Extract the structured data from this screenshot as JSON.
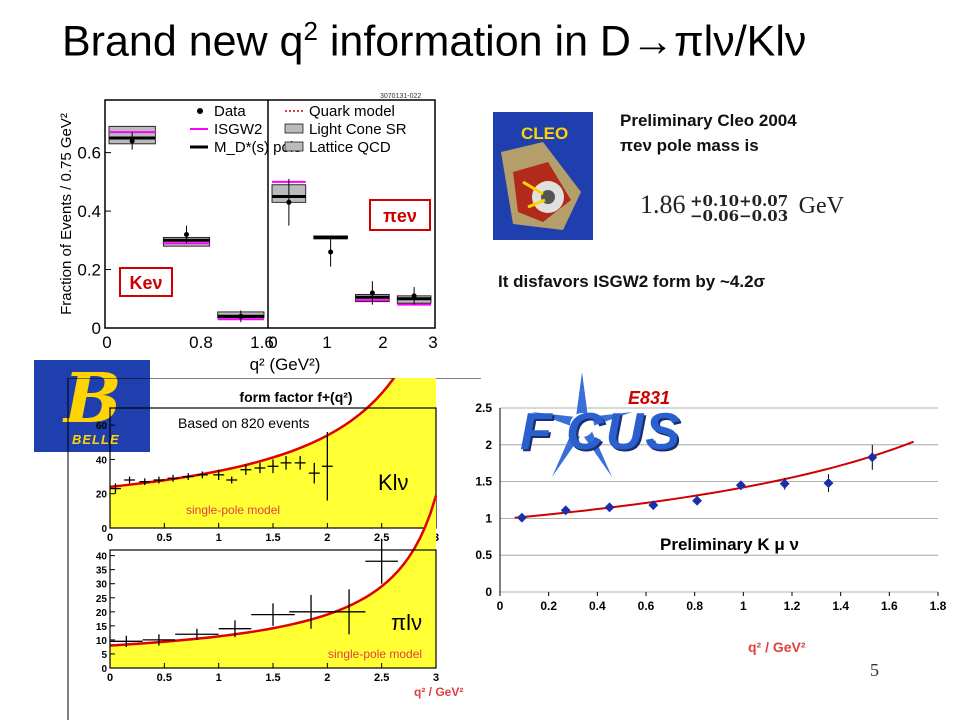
{
  "slide": {
    "title_pre": "Brand new q",
    "title_sup": "2",
    "title_post": " information in D→πlν/Klν",
    "page_number": "5"
  },
  "cleo": {
    "logo_text": "CLEO",
    "line1": "Preliminary Cleo 2004",
    "line2": "πeν pole mass is",
    "pole_mass": "1.86",
    "err_up": "+0.10+0.07",
    "err_dn": "−0.06−0.03",
    "unit": "GeV",
    "disfavor": "It disfavors ISGW2 form by ~4.2σ"
  },
  "belle": {
    "logo_text": "BELLE"
  },
  "focus": {
    "logo_text": "F CUS",
    "tag": "E831"
  },
  "chart_data": [
    {
      "type": "bar",
      "id": "cleo-q2",
      "tag": "3070131-022",
      "ylabel": "Fraction of Events / 0.75 GeV²",
      "xlabel": "q² (GeV²)",
      "x_ticks_left": [
        "0",
        "0.8",
        "1.6"
      ],
      "x_ticks_right": [
        "0",
        "1",
        "2",
        "3"
      ],
      "y_ticks": [
        "0",
        "0.2",
        "0.4",
        "0.6"
      ],
      "ylim": [
        0,
        0.78
      ],
      "legend": [
        "Data",
        "ISGW2",
        "M_D*(s) pole",
        "Quark model",
        "Light Cone SR",
        "Lattice QCD"
      ],
      "label_ke": "Keν",
      "label_pie": "πeν",
      "panels": [
        {
          "name": "Keν",
          "bins": [
            {
              "data": 0.64,
              "err": 0.03,
              "isgw2": 0.67,
              "pole": 0.65,
              "box": [
                0.63,
                0.69
              ]
            },
            {
              "data": 0.32,
              "err": 0.03,
              "isgw2": 0.29,
              "pole": 0.3,
              "box": [
                0.28,
                0.31
              ]
            },
            {
              "data": 0.04,
              "err": 0.02,
              "isgw2": 0.03,
              "pole": 0.04,
              "box": [
                0.035,
                0.055
              ]
            }
          ]
        },
        {
          "name": "πeν",
          "bins": [
            {
              "data": 0.43,
              "err": 0.08,
              "isgw2": 0.5,
              "pole": 0.45,
              "box": [
                0.43,
                0.49
              ]
            },
            {
              "data": 0.26,
              "err": 0.05,
              "isgw2": 0.31,
              "pole": 0.31,
              "box": [
                0.305,
                0.315
              ]
            },
            {
              "data": 0.12,
              "err": 0.04,
              "isgw2": 0.095,
              "pole": 0.105,
              "box": [
                0.09,
                0.115
              ]
            },
            {
              "data": 0.11,
              "err": 0.03,
              "isgw2": 0.08,
              "pole": 0.1,
              "box": [
                0.085,
                0.11
              ]
            }
          ]
        }
      ]
    },
    {
      "type": "scatter",
      "id": "belle-kln",
      "title": "form factor f+(q²)",
      "annotation": "Based on 820 events",
      "model_label": "single-pole model",
      "channel": "Klν",
      "x_ticks": [
        "0",
        "0.5",
        "1",
        "1.5",
        "2",
        "2.5",
        "3"
      ],
      "y_ticks": [
        "0",
        "20",
        "40",
        "60"
      ],
      "xlim": [
        0,
        3
      ],
      "ylim": [
        0,
        70
      ],
      "x": [
        0.05,
        0.18,
        0.32,
        0.45,
        0.58,
        0.72,
        0.85,
        1.0,
        1.12,
        1.25,
        1.38,
        1.5,
        1.62,
        1.75,
        1.88,
        2.0
      ],
      "y": [
        23,
        28,
        27,
        28,
        29,
        30,
        31,
        31,
        28,
        34,
        35,
        36,
        38,
        38,
        32,
        36
      ],
      "y_err": [
        3,
        2,
        2,
        2,
        2,
        2,
        2,
        3,
        2,
        3,
        3,
        4,
        4,
        4,
        6,
        20
      ]
    },
    {
      "type": "scatter",
      "id": "belle-piln",
      "model_label": "single-pole model",
      "channel": "πlν",
      "xlabel": "q² / GeV²",
      "x_ticks": [
        "0",
        "0.5",
        "1",
        "1.5",
        "2",
        "2.5",
        "3"
      ],
      "y_ticks": [
        "0",
        "5",
        "10",
        "15",
        "20",
        "25",
        "30",
        "35",
        "40"
      ],
      "xlim": [
        0,
        3
      ],
      "ylim": [
        0,
        42
      ],
      "x": [
        0.15,
        0.45,
        0.8,
        1.15,
        1.5,
        1.85,
        2.2,
        2.5
      ],
      "x_err": [
        0.15,
        0.15,
        0.2,
        0.15,
        0.2,
        0.2,
        0.15,
        0.15
      ],
      "y": [
        9.5,
        10,
        12,
        14,
        19,
        20,
        20,
        38
      ],
      "y_err": [
        2,
        2,
        2,
        3,
        4,
        6,
        8,
        8
      ]
    },
    {
      "type": "scatter",
      "id": "focus-kmunu",
      "annotation": "Preliminary K μ ν",
      "xlabel": "q² / GeV²",
      "x_ticks": [
        "0",
        "0.2",
        "0.4",
        "0.6",
        "0.8",
        "1",
        "1.2",
        "1.4",
        "1.6",
        "1.8"
      ],
      "y_ticks": [
        "0",
        "0.5",
        "1",
        "1.5",
        "2",
        "2.5"
      ],
      "xlim": [
        0,
        1.8
      ],
      "ylim": [
        0,
        2.5
      ],
      "x": [
        0.09,
        0.27,
        0.45,
        0.63,
        0.81,
        0.99,
        1.17,
        1.35,
        1.53
      ],
      "y": [
        1.01,
        1.11,
        1.15,
        1.18,
        1.24,
        1.45,
        1.47,
        1.48,
        1.83
      ],
      "y_err": [
        0.02,
        0.03,
        0.03,
        0.04,
        0.05,
        0.06,
        0.08,
        0.12,
        0.17
      ]
    }
  ]
}
